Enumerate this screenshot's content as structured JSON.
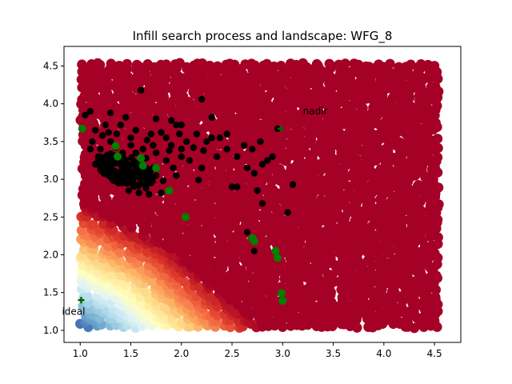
{
  "chart_data": {
    "type": "scatter",
    "title": "Infill search process and landscape: WFG_8",
    "xlabel": "",
    "ylabel": "",
    "xlim": [
      0.84,
      4.76
    ],
    "ylim": [
      0.84,
      4.76
    ],
    "xticks": [
      "1.0",
      "1.5",
      "2.0",
      "2.5",
      "3.0",
      "3.5",
      "4.0",
      "4.5"
    ],
    "xtick_values": [
      1.0,
      1.5,
      2.0,
      2.5,
      3.0,
      3.5,
      4.0,
      4.5
    ],
    "yticks": [
      "1.0",
      "1.5",
      "2.0",
      "2.5",
      "3.0",
      "3.5",
      "4.0",
      "4.5"
    ],
    "ytick_values": [
      1.0,
      1.5,
      2.0,
      2.5,
      3.0,
      3.5,
      4.0,
      4.5
    ],
    "grid": false,
    "colors": {
      "landscape_low": "#313695",
      "landscape_mid": "#ffffbf",
      "landscape_high": "#a50026",
      "evaluated": "#000000",
      "infill": "#008000",
      "markers": "#006400"
    },
    "landscape": {
      "x_range": [
        1.0,
        4.55
      ],
      "y_range": [
        1.03,
        4.55
      ],
      "colormap": "RdYlBu_r"
    },
    "evaluated_points": [
      [
        1.05,
        3.85
      ],
      [
        1.1,
        3.9
      ],
      [
        1.3,
        3.88
      ],
      [
        1.45,
        3.82
      ],
      [
        1.6,
        4.18
      ],
      [
        1.75,
        3.8
      ],
      [
        1.9,
        3.78
      ],
      [
        2.0,
        3.72
      ],
      [
        2.2,
        4.06
      ],
      [
        2.3,
        3.82
      ],
      [
        2.38,
        3.55
      ],
      [
        2.45,
        3.4
      ],
      [
        2.55,
        3.3
      ],
      [
        2.62,
        3.45
      ],
      [
        2.7,
        3.4
      ],
      [
        2.78,
        3.5
      ],
      [
        2.9,
        3.3
      ],
      [
        2.65,
        3.15
      ],
      [
        2.72,
        3.08
      ],
      [
        2.8,
        3.2
      ],
      [
        2.85,
        3.25
      ],
      [
        2.5,
        2.9
      ],
      [
        2.55,
        2.9
      ],
      [
        2.75,
        2.85
      ],
      [
        2.8,
        2.68
      ],
      [
        2.95,
        3.67
      ],
      [
        3.1,
        2.93
      ],
      [
        3.05,
        2.56
      ],
      [
        2.65,
        2.3
      ],
      [
        2.72,
        2.05
      ],
      [
        2.2,
        3.15
      ],
      [
        2.35,
        3.3
      ],
      [
        1.95,
        3.05
      ],
      [
        1.8,
        2.82
      ],
      [
        2.17,
        2.99
      ],
      [
        2.0,
        3.3
      ],
      [
        2.25,
        3.5
      ],
      [
        1.85,
        3.55
      ],
      [
        1.7,
        3.6
      ],
      [
        1.55,
        3.65
      ],
      [
        1.4,
        3.72
      ],
      [
        1.25,
        3.72
      ],
      [
        1.15,
        3.65
      ],
      [
        1.12,
        3.5
      ],
      [
        1.2,
        3.4
      ],
      [
        1.3,
        3.3
      ],
      [
        1.4,
        3.2
      ],
      [
        1.5,
        3.1
      ],
      [
        1.6,
        3.0
      ],
      [
        1.7,
        2.95
      ],
      [
        1.45,
        3.0
      ],
      [
        1.55,
        2.92
      ],
      [
        1.65,
        2.88
      ],
      [
        1.35,
        3.1
      ],
      [
        1.25,
        3.2
      ],
      [
        1.5,
        3.45
      ],
      [
        1.62,
        3.4
      ],
      [
        1.75,
        3.35
      ],
      [
        1.9,
        3.45
      ],
      [
        2.05,
        3.5
      ],
      [
        2.15,
        3.6
      ],
      [
        2.12,
        3.42
      ],
      [
        1.98,
        3.6
      ],
      [
        1.85,
        3.25
      ],
      [
        1.72,
        3.15
      ],
      [
        1.58,
        3.22
      ],
      [
        1.42,
        3.35
      ],
      [
        1.3,
        3.5
      ],
      [
        1.18,
        3.3
      ],
      [
        1.28,
        3.05
      ],
      [
        1.38,
        2.95
      ],
      [
        1.48,
        2.85
      ],
      [
        1.58,
        2.82
      ],
      [
        1.68,
        2.8
      ],
      [
        1.75,
        3.05
      ],
      [
        1.82,
        2.98
      ],
      [
        1.92,
        3.15
      ],
      [
        2.0,
        3.4
      ],
      [
        2.3,
        3.55
      ],
      [
        2.45,
        3.6
      ],
      [
        1.22,
        3.58
      ],
      [
        1.36,
        3.6
      ],
      [
        1.5,
        3.55
      ],
      [
        1.66,
        3.52
      ],
      [
        1.8,
        3.62
      ],
      [
        1.95,
        3.72
      ],
      [
        1.1,
        3.4
      ],
      [
        1.15,
        3.2
      ],
      [
        1.45,
        3.25
      ],
      [
        1.55,
        3.35
      ],
      [
        1.65,
        3.28
      ],
      [
        1.35,
        3.42
      ],
      [
        1.28,
        3.62
      ],
      [
        1.4,
        3.05
      ],
      [
        1.52,
        3.0
      ],
      [
        1.62,
        3.1
      ],
      [
        1.72,
        3.45
      ],
      [
        1.88,
        3.38
      ],
      [
        2.08,
        3.25
      ],
      [
        2.22,
        3.38
      ]
    ],
    "infill_points": [
      [
        1.02,
        3.67
      ],
      [
        1.35,
        3.44
      ],
      [
        1.37,
        3.3
      ],
      [
        1.6,
        3.28
      ],
      [
        1.62,
        3.18
      ],
      [
        1.75,
        3.15
      ],
      [
        1.88,
        2.85
      ],
      [
        2.04,
        2.5
      ],
      [
        2.7,
        2.22
      ],
      [
        2.72,
        2.18
      ],
      [
        2.93,
        2.05
      ],
      [
        2.95,
        1.96
      ],
      [
        2.99,
        1.49
      ],
      [
        3.0,
        1.39
      ]
    ],
    "ideal_point": [
      1.01,
      1.4
    ],
    "nadir_point": [
      2.98,
      3.67
    ],
    "annotations": [
      {
        "text": "ideal",
        "x": 0.82,
        "y": 1.25
      },
      {
        "text": "nadir",
        "x": 3.2,
        "y": 3.9
      }
    ]
  }
}
